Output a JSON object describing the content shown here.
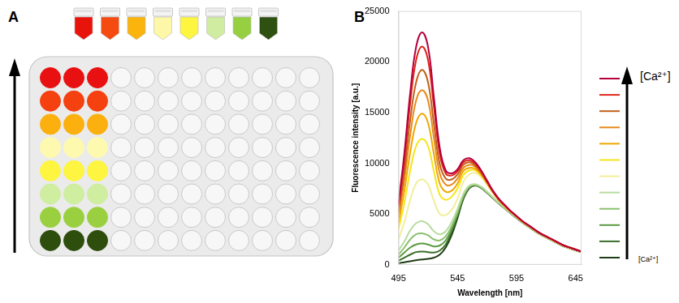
{
  "panel_a": {
    "label": "A",
    "tube_colors": [
      "#e8140c",
      "#f54a10",
      "#fbb40c",
      "#fdf7a8",
      "#fdf540",
      "#d0eca0",
      "#96d040",
      "#2e5010"
    ],
    "plate": {
      "rows": 8,
      "columns": 12,
      "filled_columns": 3,
      "row_colors": [
        "#e81010",
        "#f54010",
        "#fbb010",
        "#fdfab0",
        "#fdf540",
        "#cfeea0",
        "#9ad040",
        "#2e4e0e"
      ]
    }
  },
  "chart_data": {
    "type": "line",
    "x_label": "Wavelength [nm]",
    "y_label": "Fluorescence intensity [a.u.]",
    "annotations": {
      "panel": "B",
      "arrow_top": "[Ca²⁺]",
      "arrow_bottom": "[Ca²⁺]"
    },
    "legend": "right",
    "grid": false,
    "xlim": [
      495,
      650
    ],
    "xticks": [
      495,
      545,
      595,
      645
    ],
    "ylim": [
      0,
      25000
    ],
    "yticks": [
      0,
      5000,
      10000,
      15000,
      20000,
      25000
    ],
    "x": [
      495,
      500,
      505,
      510,
      515,
      520,
      525,
      530,
      535,
      540,
      545,
      550,
      555,
      560,
      565,
      570,
      575,
      580,
      585,
      590,
      595,
      600,
      605,
      610,
      615,
      620,
      625,
      630,
      635,
      640,
      645,
      650
    ],
    "series": [
      {
        "color": "#b5003c",
        "values": [
          6000,
          11000,
          17000,
          21500,
          22900,
          21500,
          16500,
          11500,
          9300,
          9000,
          9400,
          10300,
          10500,
          10100,
          9300,
          8300,
          7300,
          6500,
          5900,
          5300,
          4800,
          4300,
          3900,
          3500,
          3100,
          2800,
          2500,
          2200,
          1900,
          1700,
          1500,
          1300
        ]
      },
      {
        "color": "#e0251b",
        "values": [
          5700,
          10300,
          16000,
          20200,
          21500,
          20200,
          15600,
          10900,
          9000,
          8800,
          9200,
          10100,
          10300,
          9950,
          9200,
          8200,
          7250,
          6450,
          5850,
          5280,
          4780,
          4290,
          3890,
          3490,
          3100,
          2800,
          2500,
          2200,
          1900,
          1700,
          1500,
          1300
        ]
      },
      {
        "color": "#c0601a",
        "values": [
          5200,
          9300,
          14300,
          18000,
          19200,
          18000,
          13900,
          9900,
          8500,
          8400,
          8900,
          9850,
          10100,
          9800,
          9100,
          8150,
          7200,
          6420,
          5820,
          5260,
          4770,
          4280,
          3880,
          3480,
          3090,
          2790,
          2490,
          2190,
          1900,
          1700,
          1500,
          1300
        ]
      },
      {
        "color": "#e88a1a",
        "values": [
          4700,
          8400,
          12800,
          16200,
          17200,
          16200,
          12500,
          9000,
          7900,
          7900,
          8500,
          9550,
          9850,
          9650,
          9000,
          8100,
          7170,
          6400,
          5800,
          5250,
          4760,
          4270,
          3870,
          3470,
          3080,
          2780,
          2480,
          2180,
          1890,
          1690,
          1490,
          1300
        ]
      },
      {
        "color": "#f0a800",
        "values": [
          4100,
          7300,
          11100,
          14000,
          14900,
          14000,
          10900,
          8000,
          7200,
          7300,
          8000,
          9250,
          9550,
          9450,
          8900,
          8050,
          7150,
          6380,
          5790,
          5240,
          4750,
          4260,
          3860,
          3460,
          3070,
          2770,
          2470,
          2170,
          1880,
          1680,
          1480,
          1290
        ]
      },
      {
        "color": "#f5e51a",
        "values": [
          3500,
          6100,
          9300,
          11700,
          12400,
          11700,
          9200,
          6900,
          6400,
          6700,
          7500,
          8850,
          9300,
          9300,
          8800,
          8000,
          7120,
          6360,
          5780,
          5230,
          4740,
          4250,
          3850,
          3450,
          3060,
          2760,
          2460,
          2160,
          1870,
          1670,
          1470,
          1280
        ]
      },
      {
        "color": "#f2ee9a",
        "values": [
          2500,
          4200,
          6400,
          8000,
          8400,
          7900,
          6300,
          5000,
          4900,
          5400,
          6500,
          8200,
          8900,
          9050,
          8650,
          7900,
          7080,
          6340,
          5770,
          5220,
          4730,
          4240,
          3840,
          3440,
          3050,
          2750,
          2450,
          2150,
          1860,
          1660,
          1460,
          1270
        ]
      },
      {
        "color": "#b8dca0",
        "values": [
          1400,
          2300,
          3400,
          4100,
          4300,
          4000,
          3300,
          3000,
          3300,
          4200,
          5500,
          7000,
          7800,
          7950,
          7700,
          7200,
          6650,
          6100,
          5600,
          5100,
          4650,
          4200,
          3800,
          3400,
          3030,
          2730,
          2430,
          2130,
          1840,
          1640,
          1440,
          1250
        ]
      },
      {
        "color": "#8cc070",
        "values": [
          1000,
          1700,
          2500,
          3000,
          3100,
          2900,
          2500,
          2400,
          2800,
          3800,
          5200,
          6800,
          7700,
          7900,
          7650,
          7150,
          6620,
          6080,
          5580,
          5090,
          4640,
          4190,
          3790,
          3390,
          3020,
          2720,
          2420,
          2120,
          1840,
          1640,
          1440,
          1250
        ]
      },
      {
        "color": "#5a9a40",
        "values": [
          700,
          1200,
          1700,
          2000,
          2100,
          2000,
          1800,
          1900,
          2400,
          3500,
          5000,
          6700,
          7650,
          7850,
          7620,
          7120,
          6600,
          6060,
          5570,
          5080,
          4630,
          4180,
          3780,
          3380,
          3010,
          2710,
          2410,
          2120,
          1830,
          1630,
          1430,
          1240
        ]
      },
      {
        "color": "#3a6e28",
        "values": [
          400,
          700,
          1000,
          1250,
          1300,
          1250,
          1200,
          1400,
          2000,
          3200,
          4800,
          6600,
          7600,
          7820,
          7600,
          7100,
          6580,
          6050,
          5560,
          5070,
          4620,
          4170,
          3770,
          3370,
          3000,
          2700,
          2400,
          2110,
          1830,
          1630,
          1430,
          1240
        ]
      },
      {
        "color": "#1e3c14",
        "values": [
          150,
          250,
          350,
          450,
          520,
          580,
          700,
          1000,
          1700,
          2900,
          4600,
          6500,
          7550,
          7800,
          7580,
          7080,
          6560,
          6040,
          5550,
          5060,
          4610,
          4160,
          3760,
          3360,
          3000,
          2700,
          2400,
          2100,
          1820,
          1620,
          1420,
          1230
        ]
      }
    ]
  }
}
